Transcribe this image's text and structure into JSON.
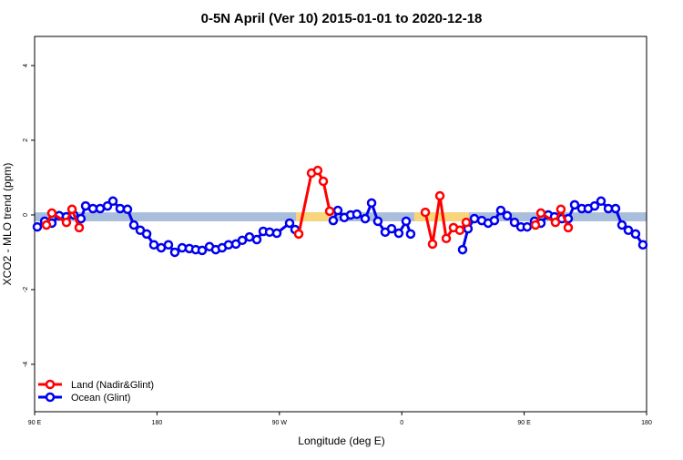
{
  "chart_data": {
    "type": "line",
    "title": "0-5N April (Ver 10)   2015-01-01 to 2020-12-18",
    "x_label": "Longitude (deg E)",
    "y_label": "XCO2 - MLO trend (ppm)",
    "xlim": [
      90,
      540
    ],
    "ylim": [
      -5.27,
      4.78
    ],
    "xticks": [
      {
        "value": 90,
        "label": "90 E"
      },
      180,
      {
        "value": 270,
        "label": "90 W"
      },
      {
        "value": 360,
        "label": "0"
      },
      {
        "value": 450,
        "label": "90 E"
      },
      {
        "value": 540,
        "label": "180"
      }
    ],
    "yticks": [
      -4,
      -2,
      0,
      2,
      4
    ],
    "band_ylim": [
      -0.17,
      0.07
    ],
    "bands": [
      {
        "x": [
          90,
          540
        ],
        "color": "#a9bedc"
      },
      {
        "x": [
          282.2,
          309.0
        ],
        "color": "#f8d57c"
      },
      {
        "x": [
          369.2,
          409.4
        ],
        "color": "#f8d57c"
      }
    ],
    "legend": "bottom-left",
    "series": [
      {
        "name": "Land (Nadir&Glint)",
        "color": "#ff0000",
        "x": [
          98.7,
          102.7,
          113.4,
          117.5,
          122.8,
          null,
          284.2,
          293.6,
          298.2,
          302.3,
          307.0,
          null,
          377.3,
          382.6,
          388.0,
          392.7,
          398.0,
          402.7,
          407.4,
          null,
          458.3,
          462.3,
          473.0,
          477.0,
          482.4
        ],
        "values": [
          -0.27,
          0.05,
          -0.2,
          0.15,
          -0.34,
          null,
          -0.51,
          1.12,
          1.19,
          0.9,
          0.1,
          null,
          0.07,
          -0.78,
          0.51,
          -0.63,
          -0.34,
          -0.41,
          -0.2,
          null,
          -0.27,
          0.05,
          -0.2,
          0.15,
          -0.34
        ]
      },
      {
        "name": "Ocean (Glint)",
        "color": "#0000ee",
        "x": [
          92.0,
          97.4,
          102.7,
          108.1,
          113.4,
          118.8,
          124.1,
          127.5,
          132.9,
          138.2,
          143.6,
          147.6,
          152.9,
          158.3,
          163.0,
          167.7,
          172.4,
          177.7,
          183.1,
          188.4,
          193.1,
          198.5,
          203.8,
          208.5,
          213.2,
          218.6,
          223.2,
          227.9,
          232.6,
          238.0,
          242.7,
          248.0,
          253.4,
          258.1,
          262.8,
          268.1,
          277.5,
          281.5,
          null,
          309.6,
          313.0,
          317.7,
          322.4,
          327.0,
          333.1,
          337.8,
          342.4,
          347.8,
          352.5,
          357.8,
          363.2,
          366.5,
          null,
          404.7,
          408.7,
          413.4,
          418.8,
          423.5,
          428.1,
          432.8,
          437.5,
          442.9,
          447.6,
          452.2,
          457.6,
          462.3,
          467.7,
          472.3,
          477.7,
          482.4,
          487.1,
          492.4,
          497.1,
          501.8,
          506.5,
          511.9,
          517.2,
          521.9,
          526.6,
          531.9,
          537.3
        ],
        "values": [
          -0.32,
          -0.17,
          -0.22,
          -0.02,
          -0.05,
          0.0,
          -0.1,
          0.24,
          0.17,
          0.17,
          0.24,
          0.37,
          0.17,
          0.15,
          -0.27,
          -0.41,
          -0.51,
          -0.8,
          -0.88,
          -0.8,
          -1.0,
          -0.88,
          -0.9,
          -0.93,
          -0.95,
          -0.85,
          -0.93,
          -0.88,
          -0.8,
          -0.78,
          -0.68,
          -0.59,
          -0.66,
          -0.44,
          -0.46,
          -0.49,
          -0.22,
          -0.39,
          null,
          -0.15,
          0.12,
          -0.07,
          0.0,
          0.02,
          -0.1,
          0.32,
          -0.17,
          -0.46,
          -0.37,
          -0.49,
          -0.17,
          -0.51,
          null,
          -0.93,
          -0.37,
          -0.1,
          -0.15,
          -0.22,
          -0.15,
          0.12,
          -0.02,
          -0.2,
          -0.32,
          -0.32,
          -0.17,
          -0.22,
          0.0,
          -0.05,
          -0.1,
          -0.1,
          0.27,
          0.17,
          0.17,
          0.24,
          0.37,
          0.17,
          0.17,
          -0.27,
          -0.41,
          -0.51,
          -0.8
        ]
      }
    ]
  }
}
